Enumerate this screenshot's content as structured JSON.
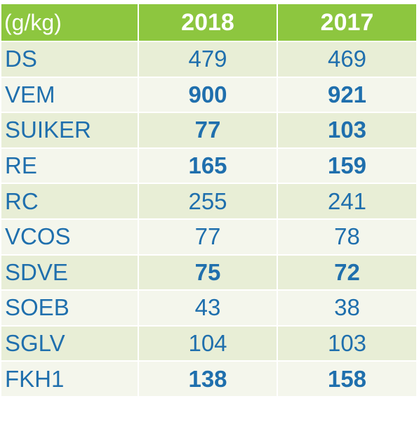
{
  "chart_data": {
    "type": "table",
    "columns": [
      "(g/kg)",
      "2018",
      "2017"
    ],
    "rows": [
      {
        "label": "DS",
        "values": [
          "479",
          "469"
        ],
        "bold": false
      },
      {
        "label": "VEM",
        "values": [
          "900",
          "921"
        ],
        "bold": true
      },
      {
        "label": "SUIKER",
        "values": [
          "77",
          "103"
        ],
        "bold": true
      },
      {
        "label": "RE",
        "values": [
          "165",
          "159"
        ],
        "bold": true
      },
      {
        "label": "RC",
        "values": [
          "255",
          "241"
        ],
        "bold": false
      },
      {
        "label": "VCOS",
        "values": [
          "77",
          "78"
        ],
        "bold": false
      },
      {
        "label": "SDVE",
        "values": [
          "75",
          "72"
        ],
        "bold": true
      },
      {
        "label": "SOEB",
        "values": [
          "43",
          "38"
        ],
        "bold": false
      },
      {
        "label": "SGLV",
        "values": [
          "104",
          "103"
        ],
        "bold": false
      },
      {
        "label": "FKH1",
        "values": [
          "138",
          "158"
        ],
        "bold": true
      }
    ],
    "colors": {
      "header_bg": "#8dc63f",
      "header_text": "#ffffff",
      "row_bg_a": "#e8eed6",
      "row_bg_b": "#f4f6ec",
      "cell_text": "#1f6fad"
    }
  }
}
